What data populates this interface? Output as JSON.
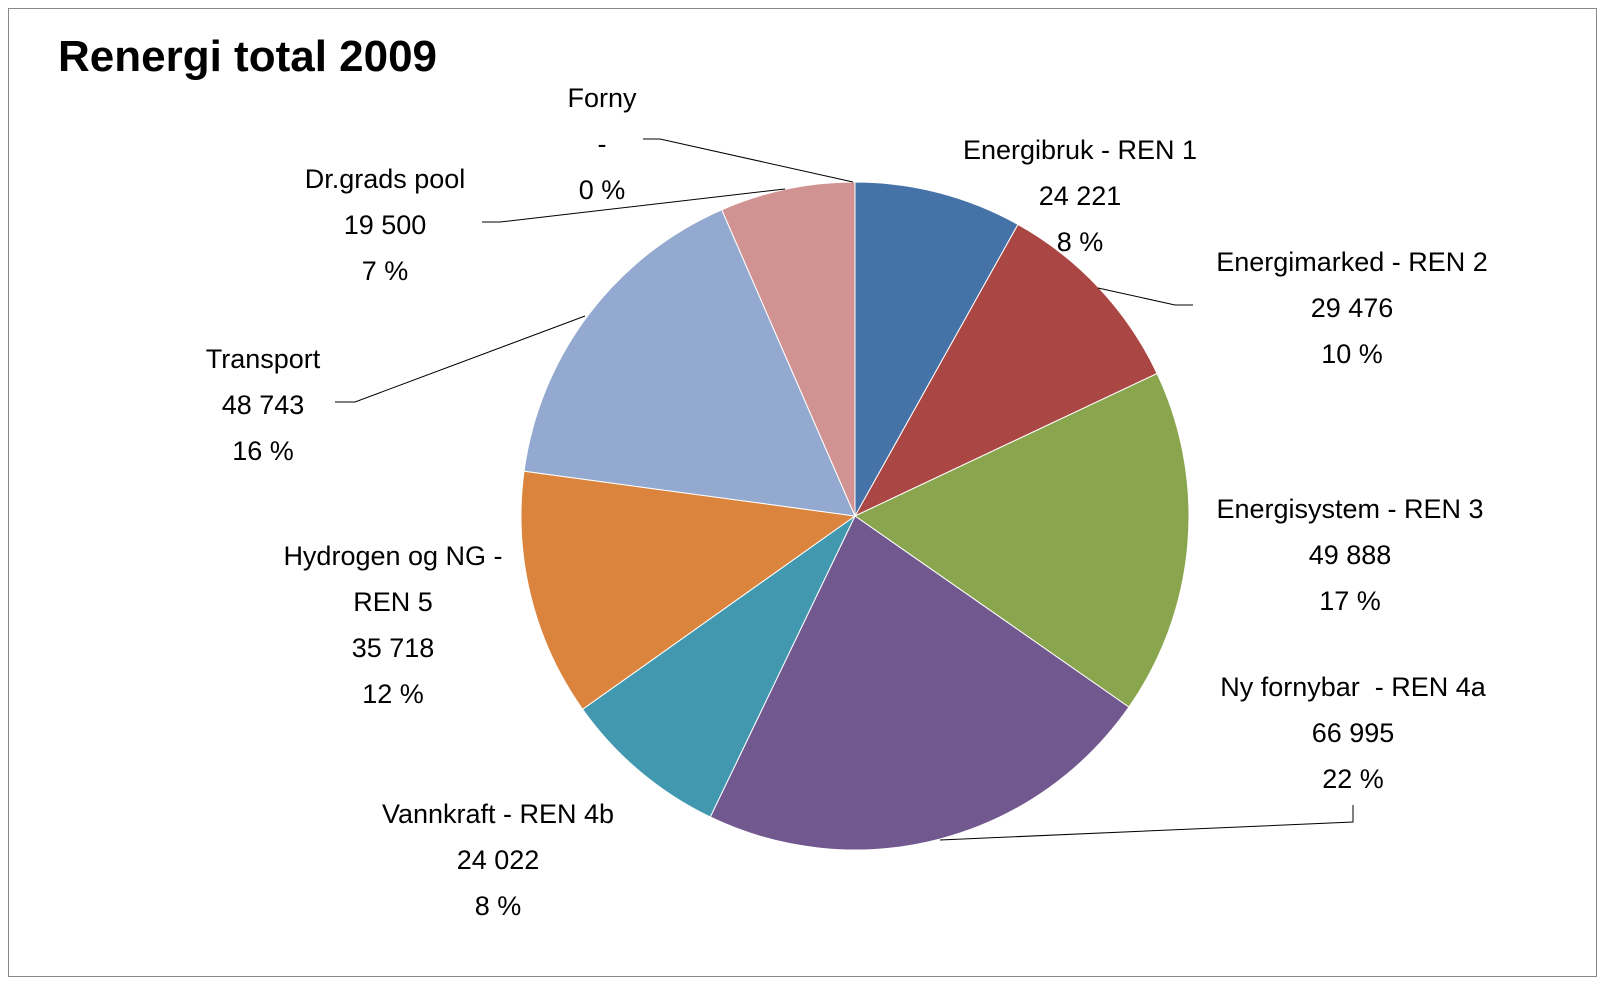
{
  "chart_data": {
    "type": "pie",
    "title": "Renergi total 2009",
    "categories": [
      "Energibruk - REN 1",
      "Energimarked - REN 2",
      "Energisystem - REN 3",
      "Ny fornybar  - REN 4a",
      "Vannkraft - REN 4b",
      "Hydrogen og NG - REN 5",
      "Transport",
      "Dr.grads pool",
      "Forny"
    ],
    "values": [
      24221,
      29476,
      49888,
      66995,
      24022,
      35718,
      48743,
      19500,
      0
    ],
    "value_labels": [
      "24 221",
      "29 476",
      "49 888",
      "66 995",
      "24 022",
      "35 718",
      "48 743",
      "19 500",
      "-"
    ],
    "percents": [
      8,
      10,
      17,
      22,
      8,
      12,
      16,
      7,
      0
    ],
    "percent_labels": [
      "8 %",
      "10 %",
      "17 %",
      "22 %",
      "8 %",
      "12 %",
      "16 %",
      "7 %",
      "0 %"
    ],
    "colors": [
      "#4572a7",
      "#aa4643",
      "#89a54e",
      "#71588f",
      "#4198af",
      "#db843d",
      "#93a9cf",
      "#d19392",
      "#a99bbd"
    ]
  }
}
